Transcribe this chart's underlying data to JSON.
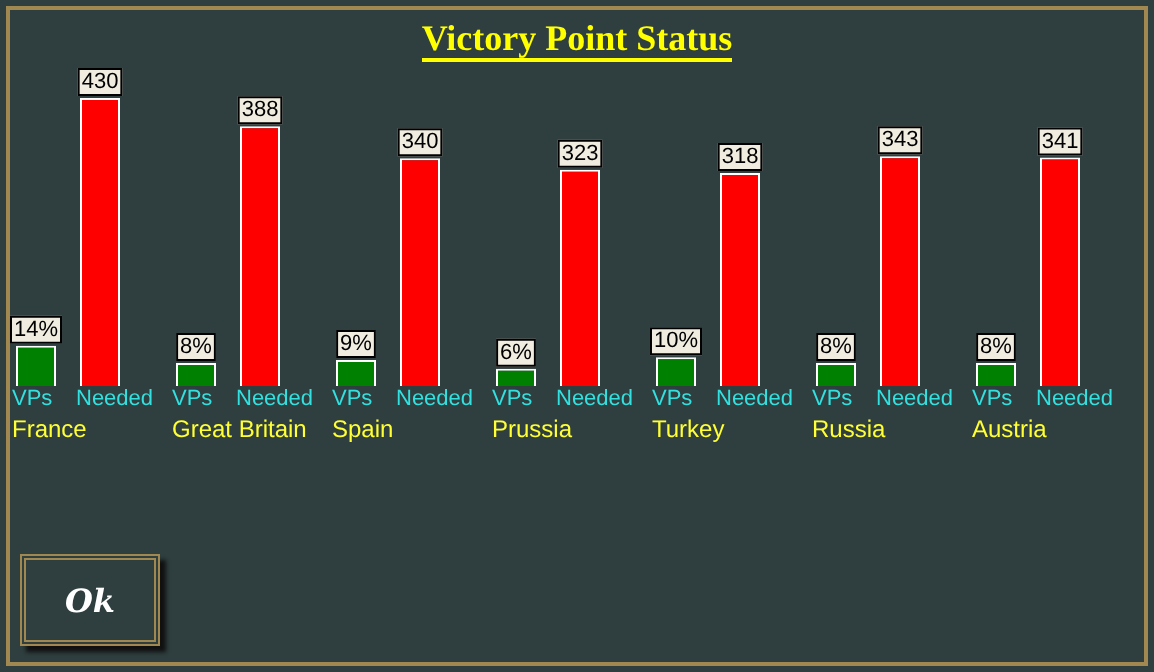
{
  "chart_data": {
    "type": "bar",
    "title": "Victory Point Status",
    "categories": [
      "France",
      "Great Britain",
      "Spain",
      "Prussia",
      "Turkey",
      "Russia",
      "Austria"
    ],
    "series": [
      {
        "name": "VPs",
        "color": "#008000",
        "axis": "y2",
        "values": [
          14,
          8,
          9,
          6,
          10,
          8,
          8
        ],
        "value_labels": [
          "14%",
          "8%",
          "9%",
          "6%",
          "10%",
          "8%",
          "8%"
        ]
      },
      {
        "name": "Needed",
        "color": "#ff0000",
        "values": [
          430,
          388,
          340,
          323,
          318,
          343,
          341
        ],
        "value_labels": [
          "430",
          "388",
          "340",
          "323",
          "318",
          "343",
          "341"
        ]
      }
    ],
    "legend": false,
    "y2lim": [
      0,
      100
    ],
    "annotations": [
      "Ok"
    ]
  }
}
